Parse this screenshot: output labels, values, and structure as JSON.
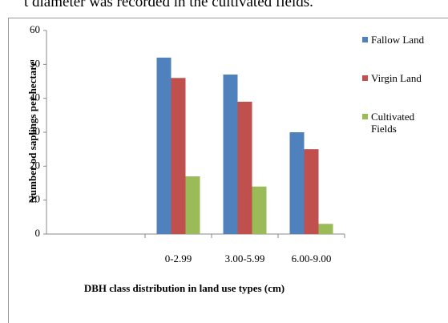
{
  "preceding_text": "t diameter was recorded in the cultivated fields.",
  "chart_data": {
    "type": "bar",
    "categories": [
      null,
      "0-2.99",
      "3.00-5.99",
      "6.00-9.00"
    ],
    "series": [
      {
        "name": "Fallow Land",
        "color": "#4f81bd",
        "values": [
          null,
          52,
          47,
          30
        ]
      },
      {
        "name": "Virgin Land",
        "color": "#c0504d",
        "values": [
          null,
          46,
          39,
          25
        ]
      },
      {
        "name": "Cultivated Fields",
        "color": "#9bbb59",
        "values": [
          null,
          17,
          14,
          3
        ]
      }
    ],
    "ylim": [
      0,
      60
    ],
    "yticks": [
      0,
      10,
      20,
      30,
      40,
      50,
      60
    ],
    "ylabel": "Number od saplings per hectare",
    "xlabel": "DBH class distribution in land use types (cm)",
    "grid": false,
    "legend": "right"
  }
}
